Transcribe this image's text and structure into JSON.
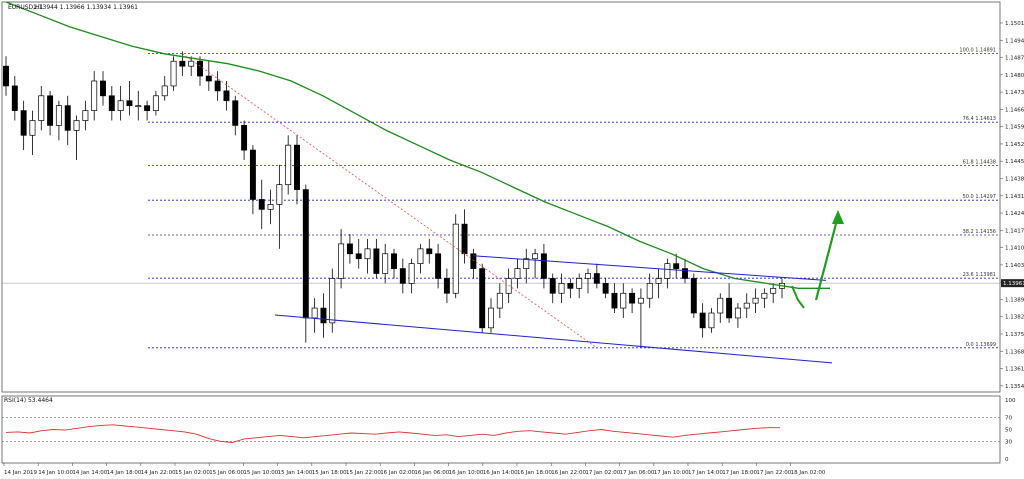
{
  "header": {
    "symbol": "EURUSD,H1",
    "ohlc": "1.13944 1.13966 1.13934 1.13961"
  },
  "rsi_panel": {
    "label": "RSI(14) 53.4464"
  },
  "chart_data": [
    {
      "type": "candlestick",
      "title": "EURUSD,H1",
      "ylim": [
        1.1352,
        1.151
      ],
      "price_ticks": [
        "1.15015",
        "1.14945",
        "1.14875",
        "1.14805",
        "1.14735",
        "1.14665",
        "1.14595",
        "1.14525",
        "1.14455",
        "1.14385",
        "1.14315",
        "1.14245",
        "1.14175",
        "1.14105",
        "1.14035",
        "1.13965",
        "1.13895",
        "1.13825",
        "1.13755",
        "1.13685",
        "1.13615",
        "1.13545"
      ],
      "current_price": "1.13961",
      "time_ticks": [
        "14 Jan 2019",
        "14 Jan 10:00",
        "14 Jan 14:00",
        "14 Jan 18:00",
        "14 Jan 22:00",
        "15 Jan 02:00",
        "15 Jan 06:00",
        "15 Jan 10:00",
        "15 Jan 14:00",
        "15 Jan 18:00",
        "15 Jan 22:00",
        "16 Jan 02:00",
        "16 Jan 06:00",
        "16 Jan 10:00",
        "16 Jan 14:00",
        "16 Jan 18:00",
        "16 Jan 22:00",
        "17 Jan 02:00",
        "17 Jan 06:00",
        "17 Jan 10:00",
        "17 Jan 14:00",
        "17 Jan 18:00",
        "17 Jan 22:00",
        "18 Jan 02:00"
      ],
      "candles": [
        [
          1.1484,
          1.1488,
          1.1472,
          1.1476
        ],
        [
          1.1476,
          1.148,
          1.1462,
          1.1466
        ],
        [
          1.1466,
          1.147,
          1.145,
          1.1456
        ],
        [
          1.1456,
          1.1466,
          1.1448,
          1.1462
        ],
        [
          1.1462,
          1.1476,
          1.1458,
          1.1472
        ],
        [
          1.1472,
          1.1474,
          1.1456,
          1.146
        ],
        [
          1.146,
          1.147,
          1.1454,
          1.1468
        ],
        [
          1.1468,
          1.1472,
          1.1452,
          1.1458
        ],
        [
          1.1458,
          1.1464,
          1.1446,
          1.1462
        ],
        [
          1.1462,
          1.147,
          1.1458,
          1.1466
        ],
        [
          1.1466,
          1.1482,
          1.1462,
          1.1478
        ],
        [
          1.1478,
          1.1482,
          1.1468,
          1.1472
        ],
        [
          1.1472,
          1.1476,
          1.1462,
          1.1466
        ],
        [
          1.1466,
          1.1476,
          1.1462,
          1.147
        ],
        [
          1.147,
          1.1478,
          1.1464,
          1.1468
        ],
        [
          1.1468,
          1.1474,
          1.1462,
          1.1468
        ],
        [
          1.1468,
          1.147,
          1.1462,
          1.1466
        ],
        [
          1.1466,
          1.1474,
          1.1464,
          1.1472
        ],
        [
          1.1472,
          1.148,
          1.147,
          1.1476
        ],
        [
          1.1476,
          1.1488,
          1.1474,
          1.1486
        ],
        [
          1.1486,
          1.149,
          1.148,
          1.1484
        ],
        [
          1.1484,
          1.1488,
          1.148,
          1.1486
        ],
        [
          1.1486,
          1.1488,
          1.1476,
          1.148
        ],
        [
          1.148,
          1.1486,
          1.1474,
          1.1478
        ],
        [
          1.1478,
          1.1482,
          1.147,
          1.1474
        ],
        [
          1.1474,
          1.1478,
          1.1466,
          1.147
        ],
        [
          1.147,
          1.1472,
          1.1456,
          1.146
        ],
        [
          1.146,
          1.1462,
          1.1446,
          1.145
        ],
        [
          1.145,
          1.1452,
          1.1424,
          1.143
        ],
        [
          1.143,
          1.1438,
          1.1418,
          1.1426
        ],
        [
          1.1426,
          1.1434,
          1.142,
          1.1428
        ],
        [
          1.1428,
          1.1444,
          1.141,
          1.1436
        ],
        [
          1.1436,
          1.1456,
          1.1432,
          1.1452
        ],
        [
          1.1452,
          1.1456,
          1.1428,
          1.1434
        ],
        [
          1.1434,
          1.1436,
          1.1372,
          1.1382
        ],
        [
          1.1382,
          1.139,
          1.1376,
          1.1386
        ],
        [
          1.1386,
          1.1392,
          1.1374,
          1.138
        ],
        [
          1.138,
          1.1402,
          1.1376,
          1.1398
        ],
        [
          1.1398,
          1.1418,
          1.1394,
          1.1412
        ],
        [
          1.1412,
          1.1416,
          1.1404,
          1.1408
        ],
        [
          1.1408,
          1.1414,
          1.1402,
          1.1406
        ],
        [
          1.1406,
          1.1414,
          1.14,
          1.141
        ],
        [
          1.141,
          1.1414,
          1.1398,
          1.14
        ],
        [
          1.14,
          1.1412,
          1.1396,
          1.1408
        ],
        [
          1.1408,
          1.141,
          1.1398,
          1.1402
        ],
        [
          1.1402,
          1.1406,
          1.1392,
          1.1396
        ],
        [
          1.1396,
          1.1406,
          1.1392,
          1.1404
        ],
        [
          1.1404,
          1.1412,
          1.14,
          1.141
        ],
        [
          1.141,
          1.1414,
          1.1404,
          1.1408
        ],
        [
          1.1408,
          1.1412,
          1.1394,
          1.1398
        ],
        [
          1.1398,
          1.1402,
          1.1388,
          1.1392
        ],
        [
          1.1392,
          1.1424,
          1.139,
          1.142
        ],
        [
          1.142,
          1.1426,
          1.1404,
          1.1408
        ],
        [
          1.1408,
          1.141,
          1.1398,
          1.1402
        ],
        [
          1.1402,
          1.1404,
          1.1376,
          1.1378
        ],
        [
          1.1378,
          1.139,
          1.1376,
          1.1386
        ],
        [
          1.1386,
          1.1396,
          1.1382,
          1.1392
        ],
        [
          1.1392,
          1.1402,
          1.1388,
          1.1398
        ],
        [
          1.1398,
          1.1406,
          1.1394,
          1.1402
        ],
        [
          1.1402,
          1.141,
          1.1396,
          1.1406
        ],
        [
          1.1406,
          1.141,
          1.1398,
          1.1408
        ],
        [
          1.1408,
          1.1412,
          1.1394,
          1.1398
        ],
        [
          1.1398,
          1.14,
          1.1388,
          1.1392
        ],
        [
          1.1392,
          1.14,
          1.1388,
          1.1396
        ],
        [
          1.1396,
          1.1398,
          1.139,
          1.1394
        ],
        [
          1.1394,
          1.14,
          1.139,
          1.1398
        ],
        [
          1.1398,
          1.1402,
          1.1392,
          1.14
        ],
        [
          1.14,
          1.1404,
          1.1394,
          1.1396
        ],
        [
          1.1396,
          1.1398,
          1.139,
          1.1392
        ],
        [
          1.1392,
          1.1396,
          1.1384,
          1.1386
        ],
        [
          1.1386,
          1.1396,
          1.1382,
          1.1392
        ],
        [
          1.1392,
          1.1394,
          1.1384,
          1.1388
        ],
        [
          1.1388,
          1.1394,
          1.137,
          1.139
        ],
        [
          1.139,
          1.14,
          1.1386,
          1.1396
        ],
        [
          1.1396,
          1.1402,
          1.139,
          1.1398
        ],
        [
          1.1398,
          1.1406,
          1.1394,
          1.1404
        ],
        [
          1.1404,
          1.1408,
          1.1398,
          1.1402
        ],
        [
          1.1402,
          1.1406,
          1.1396,
          1.1398
        ],
        [
          1.1398,
          1.14,
          1.1382,
          1.1384
        ],
        [
          1.1384,
          1.1388,
          1.1374,
          1.1378
        ],
        [
          1.1378,
          1.1386,
          1.1376,
          1.1384
        ],
        [
          1.1384,
          1.1392,
          1.138,
          1.139
        ],
        [
          1.139,
          1.1396,
          1.138,
          1.1382
        ],
        [
          1.1382,
          1.1388,
          1.1378,
          1.1386
        ],
        [
          1.1386,
          1.1392,
          1.1382,
          1.1388
        ],
        [
          1.1388,
          1.1394,
          1.1384,
          1.139
        ],
        [
          1.139,
          1.1394,
          1.1386,
          1.1392
        ],
        [
          1.1392,
          1.1396,
          1.1388,
          1.1394
        ],
        [
          1.1394,
          1.1398,
          1.139,
          1.1396
        ]
      ],
      "ma_series": {
        "color": "#1a8c1a",
        "values": [
          1.151,
          1.1505,
          1.15,
          1.1496,
          1.1492,
          1.1489,
          1.1487,
          1.1485,
          1.1482,
          1.1478,
          1.1472,
          1.1465,
          1.1458,
          1.1452,
          1.1446,
          1.1441,
          1.1435,
          1.1429,
          1.1424,
          1.1419,
          1.1413,
          1.1408,
          1.1402,
          1.1398,
          1.1396,
          1.1394,
          1.1394
        ]
      },
      "fibonacci": {
        "color": "#2222cc",
        "levels": [
          {
            "label": "100.0 1.14891",
            "price": 1.14891
          },
          {
            "label": "76.4 1.14613",
            "price": 1.14613
          },
          {
            "label": "61.8 1.14438",
            "price": 1.14438
          },
          {
            "label": "50.0 1.14297",
            "price": 1.14297
          },
          {
            "label": "38.2 1.14156",
            "price": 1.14156
          },
          {
            "label": "23.6 1.13981",
            "price": 1.13981
          },
          {
            "label": "0.0 1.13699",
            "price": 1.13699
          }
        ]
      },
      "channel": {
        "color": "#1f1fd0",
        "upper": [
          [
            1.14072,
            1.13972
          ]
        ],
        "lower": [
          [
            1.13832,
            1.13638
          ]
        ]
      },
      "fib_anchor_line": {
        "color": "#e05050",
        "from": 1.14891,
        "to": 1.13699
      }
    },
    {
      "type": "line",
      "title": "RSI(14) 53.4464",
      "ylim": [
        0,
        100
      ],
      "ticks": [
        "100",
        "70",
        "50",
        "30",
        "0"
      ],
      "levels": [
        70,
        30
      ],
      "series": [
        {
          "color": "#e03030",
          "values": [
            45,
            46,
            44,
            48,
            50,
            49,
            52,
            55,
            57,
            58,
            56,
            54,
            52,
            50,
            48,
            46,
            42,
            35,
            30,
            28,
            34,
            36,
            38,
            40,
            38,
            36,
            38,
            40,
            42,
            44,
            43,
            42,
            44,
            46,
            44,
            42,
            40,
            41,
            38,
            40,
            42,
            40,
            44,
            47,
            48,
            46,
            44,
            42,
            45,
            48,
            50,
            47,
            45,
            43,
            41,
            39,
            37,
            40,
            42,
            44,
            46,
            48,
            50,
            52,
            53,
            53
          ]
        }
      ]
    }
  ]
}
